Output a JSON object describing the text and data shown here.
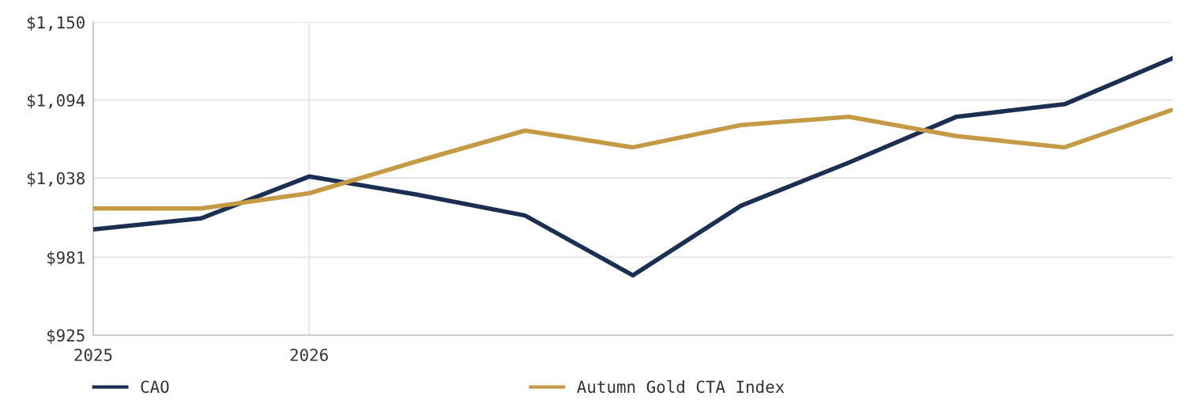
{
  "chart_data": {
    "type": "line",
    "categories": [
      "2025",
      null,
      "2026",
      null,
      null,
      null,
      null,
      null,
      null,
      null,
      null
    ],
    "series": [
      {
        "name": "CAO",
        "color": "#1b2f52",
        "values": [
          1001,
          1009,
          1039,
          1026,
          1011,
          968,
          1018,
          1049,
          1082,
          1091,
          1124
        ]
      },
      {
        "name": "Autumn Gold CTA Index",
        "color": "#c49a45",
        "values": [
          1016,
          1016,
          1027,
          1050,
          1072,
          1060,
          1076,
          1082,
          1068,
          1060,
          1087
        ]
      }
    ],
    "ylim": [
      925,
      1150
    ],
    "yticks": [
      {
        "value": 925,
        "label": "$925"
      },
      {
        "value": 981,
        "label": "$981"
      },
      {
        "value": 1038,
        "label": "$1,038"
      },
      {
        "value": 1094,
        "label": "$1,094"
      },
      {
        "value": 1150,
        "label": "$1,150"
      }
    ],
    "grid": true,
    "legend": "bottom",
    "marker": "none",
    "line_style": "solid"
  }
}
